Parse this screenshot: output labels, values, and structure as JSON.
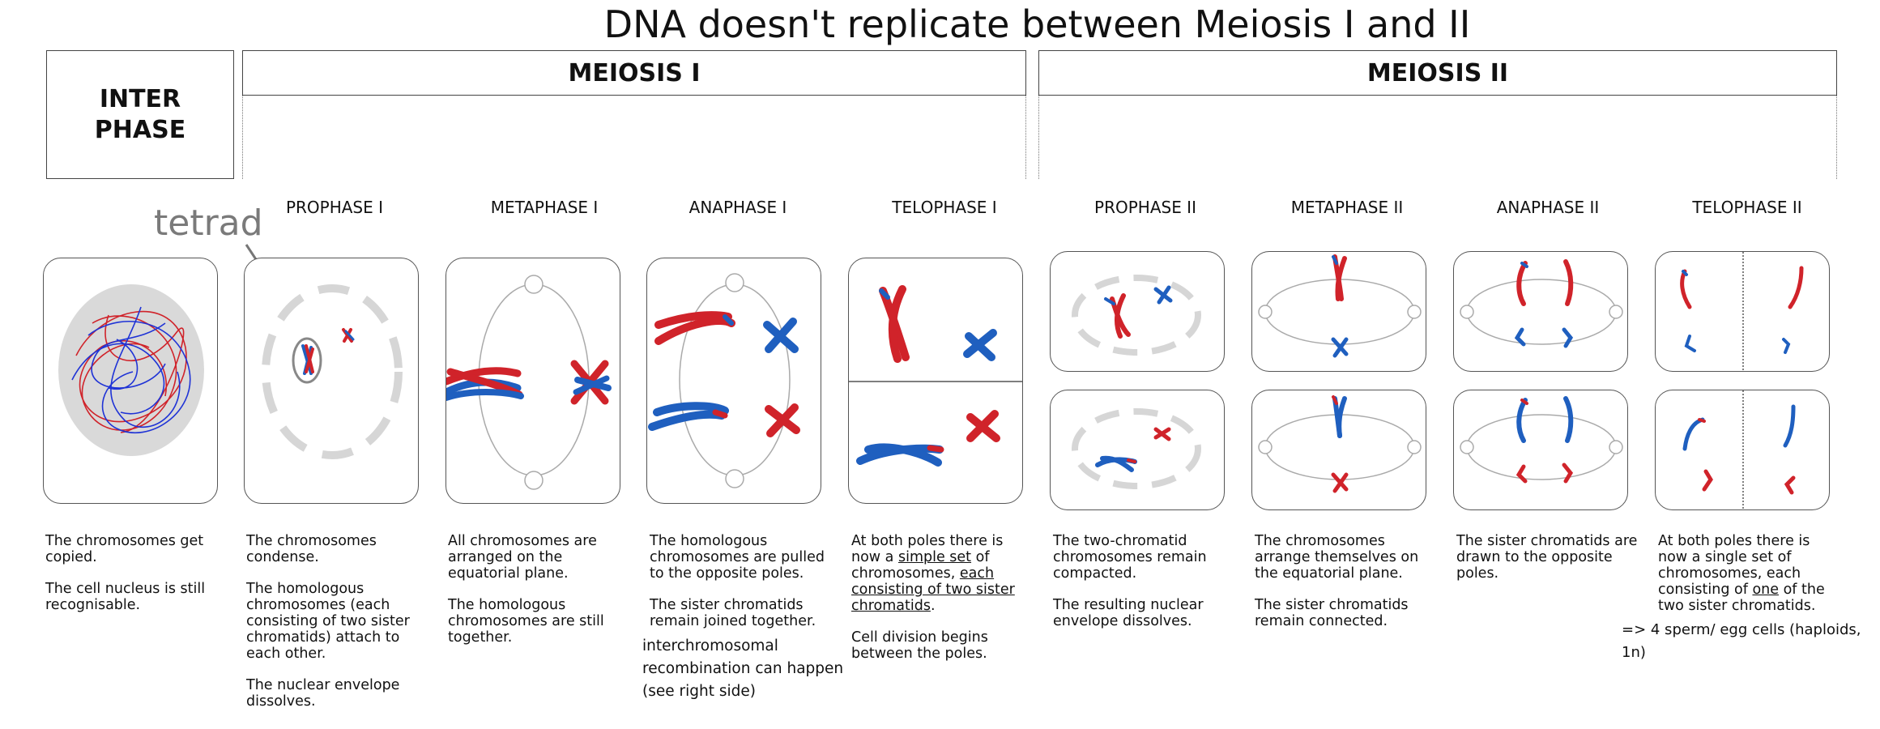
{
  "title": "DNA doesn't replicate between Meiosis I and II",
  "headers": {
    "interphase": [
      "INTER",
      "PHASE"
    ],
    "meiosis1": "MEIOSIS I",
    "meiosis2": "MEIOSIS II"
  },
  "annotation": {
    "tetrad": "tetrad"
  },
  "stages": [
    "PROPHASE I",
    "METAPHASE I",
    "ANAPHASE I",
    "TELOPHASE I",
    "PROPHASE II",
    "METAPHASE II",
    "ANAPHASE II",
    "TELOPHASE II"
  ],
  "descriptions": {
    "interphase": {
      "p1": "The chromosomes get copied.",
      "p2": "The cell nucleus is still recognisable."
    },
    "prophase1": {
      "p1": "The chromosomes condense.",
      "p2": "The homologous chromosomes (each consisting of two sister chromatids) attach to each other.",
      "p3": "The nuclear envelope dissolves."
    },
    "metaphase1": {
      "p1": "All chromosomes are arranged on the equatorial plane.",
      "p2": "The homologous chromosomes are still together."
    },
    "anaphase1": {
      "p1": "The homologous chromosomes are pulled to the opposite poles.",
      "p2": "The sister chromatids remain joined together.",
      "extra": "interchromosomal recombination can happen (see right side)"
    },
    "telophase1": {
      "a": "At both poles there is now a ",
      "b": "simple set",
      "c": " of chromosomes, ",
      "d": "each consisting of two sister chromatids",
      "e": ".",
      "p2": "Cell division begins between the poles."
    },
    "prophase2": {
      "p1": "The two-chromatid chromosomes remain compacted.",
      "p2": "The resulting nuclear envelope dissolves."
    },
    "metaphase2": {
      "p1": "The chromosomes arrange themselves on the equatorial plane.",
      "p2": "The sister chromatids remain connected."
    },
    "anaphase2": {
      "p1": "The sister chromatids are drawn to the opposite poles."
    },
    "telophase2": {
      "a": "At both poles there is now a single set of chromosomes, each consisting of ",
      "b": "one",
      "c": " of the two sister chromatids.",
      "extra": "=> 4 sperm/ egg cells (haploids, 1n)"
    }
  },
  "colors": {
    "maternal": "#d0232a",
    "paternal": "#1f5fbf",
    "envelope": "#d6d6d6",
    "spindle": "#9a9a9a"
  }
}
